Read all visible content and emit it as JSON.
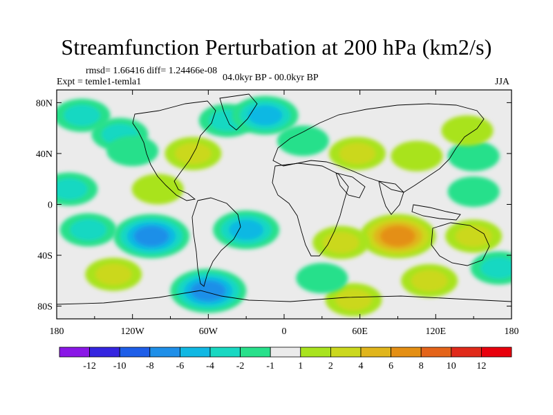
{
  "chart_data": {
    "type": "heatmap",
    "title": "Streamfunction Perturbation at 200 hPa (km2/s)",
    "stats_text": "rmsd= 1.66416 diff= 1.24466e-08",
    "left_label": "Expt = temle1-temla1",
    "center_label": "04.0kyr BP - 00.0kyr BP",
    "right_label": "JJA",
    "x_ticks": [
      "180",
      "120W",
      "60W",
      "0",
      "60E",
      "120E",
      "180"
    ],
    "x_tick_values": [
      -180,
      -120,
      -60,
      0,
      60,
      120,
      180
    ],
    "y_ticks": [
      "80N",
      "40N",
      "0",
      "40S",
      "80S"
    ],
    "y_tick_values": [
      80,
      40,
      0,
      -40,
      -80
    ],
    "xlim": [
      -180,
      180
    ],
    "ylim": [
      -90,
      90
    ],
    "colorbar_labels": [
      "-12",
      "-10",
      "-8",
      "-6",
      "-4",
      "-2",
      "-1",
      "1",
      "2",
      "4",
      "6",
      "8",
      "10",
      "12"
    ],
    "colorbar_colors": [
      "#8a17e6",
      "#3525e0",
      "#1e5ee8",
      "#1f8fe8",
      "#11b8e3",
      "#19d8c2",
      "#28e08b",
      "#ebebeb",
      "#a9e31f",
      "#cbd81e",
      "#e0b51c",
      "#e48f14",
      "#e4641a",
      "#e02a1a",
      "#e8000d"
    ],
    "anomalies": [
      {
        "lon": -160,
        "lat": 70,
        "level": -2
      },
      {
        "lon": -130,
        "lat": 55,
        "level": -2
      },
      {
        "lon": -120,
        "lat": 42,
        "level": -1
      },
      {
        "lon": -45,
        "lat": 66,
        "level": -2
      },
      {
        "lon": -15,
        "lat": 70,
        "level": -4
      },
      {
        "lon": 15,
        "lat": 50,
        "level": -1
      },
      {
        "lon": 105,
        "lat": 38,
        "level": 1
      },
      {
        "lon": 150,
        "lat": 38,
        "level": -1
      },
      {
        "lon": -72,
        "lat": 40,
        "level": 2
      },
      {
        "lon": 58,
        "lat": 40,
        "level": 2
      },
      {
        "lon": 145,
        "lat": 58,
        "level": 1
      },
      {
        "lon": -100,
        "lat": 12,
        "level": 1
      },
      {
        "lon": -170,
        "lat": 12,
        "level": -2
      },
      {
        "lon": 150,
        "lat": 10,
        "level": -1
      },
      {
        "lon": -105,
        "lat": -25,
        "level": -6
      },
      {
        "lon": -30,
        "lat": -20,
        "level": -4
      },
      {
        "lon": -155,
        "lat": -20,
        "level": -2
      },
      {
        "lon": 90,
        "lat": -25,
        "level": 6
      },
      {
        "lon": 45,
        "lat": -30,
        "level": 2
      },
      {
        "lon": 150,
        "lat": -25,
        "level": 2
      },
      {
        "lon": 170,
        "lat": -50,
        "level": -2
      },
      {
        "lon": -135,
        "lat": -55,
        "level": 2
      },
      {
        "lon": -60,
        "lat": -68,
        "level": -6
      },
      {
        "lon": 55,
        "lat": -75,
        "level": 2
      },
      {
        "lon": 115,
        "lat": -60,
        "level": 2
      },
      {
        "lon": 30,
        "lat": -58,
        "level": -1
      }
    ]
  }
}
